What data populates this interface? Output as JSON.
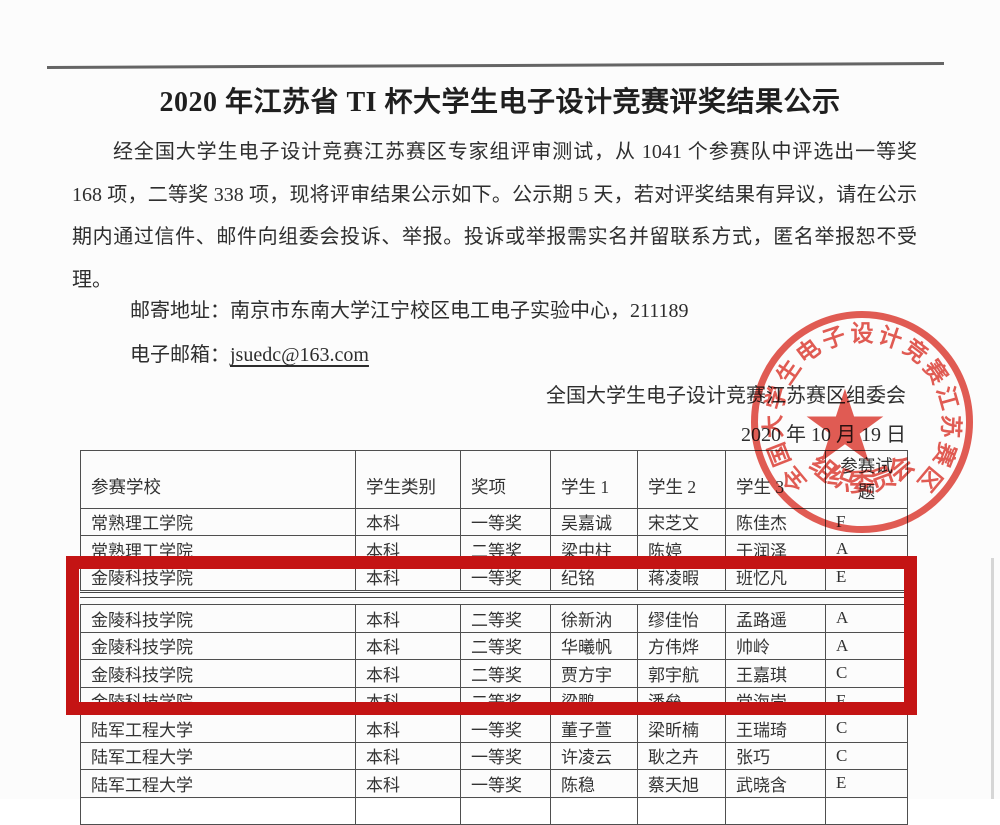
{
  "document": {
    "title": "2020 年江苏省 TI 杯大学生电子设计竞赛评奖结果公示",
    "body": "经全国大学生电子设计竞赛江苏赛区专家组评审测试，从 1041 个参赛队中评选出一等奖 168 项，二等奖 338 项，现将评审结果公示如下。公示期 5 天，若对评奖结果有异议，请在公示期内通过信件、邮件向组委会投诉、举报。投诉或举报需实名并留联系方式，匿名举报恕不受理。",
    "mail_label": "邮寄地址：",
    "mail_value": "南京市东南大学江宁校区电工电子实验中心，211189",
    "email_label": "电子邮箱：",
    "email_value": "jsuedc@163.com",
    "signature": "全国大学生电子设计竞赛江苏赛区组委会",
    "date": "2020 年 10 月 19 日"
  },
  "stamp": {
    "ring_text": "全国大学生电子设计竞赛江苏赛区",
    "bottom_text": "组织委员会",
    "star_icon": "★",
    "color": "#e0453c"
  },
  "annotation": {
    "highlight_color": "#c41414",
    "highlighted_school": "金陵科技学院"
  },
  "table": {
    "headers": [
      "参赛学校",
      "学生类别",
      "奖项",
      "学生 1",
      "学生 2",
      "学生 3",
      "参赛试题"
    ],
    "rows": [
      [
        "常熟理工学院",
        "本科",
        "一等奖",
        "吴嘉诚",
        "宋芝文",
        "陈佳杰",
        "F"
      ],
      [
        "常熟理工学院",
        "本科",
        "二等奖",
        "梁中柱",
        "陈婷",
        "于润泽",
        "A"
      ],
      [
        "金陵科技学院",
        "本科",
        "一等奖",
        "纪铭",
        "蒋凌暇",
        "班忆凡",
        "E"
      ],
      [
        "金陵科技学院",
        "本科",
        "二等奖",
        "徐新汭",
        "缪佳怡",
        "孟路遥",
        "A"
      ],
      [
        "金陵科技学院",
        "本科",
        "二等奖",
        "华曦帆",
        "方伟烨",
        "帅岭",
        "A"
      ],
      [
        "金陵科技学院",
        "本科",
        "二等奖",
        "贾方宇",
        "郭宇航",
        "王嘉琪",
        "C"
      ],
      [
        "金陵科技学院",
        "本科",
        "二等奖",
        "梁鹏",
        "潘垒",
        "党海崇",
        "F"
      ],
      [
        "陆军工程大学",
        "本科",
        "一等奖",
        "董子萱",
        "梁昕楠",
        "王瑞琦",
        "C"
      ],
      [
        "陆军工程大学",
        "本科",
        "一等奖",
        "许凌云",
        "耿之卉",
        "张巧",
        "C"
      ],
      [
        "陆军工程大学",
        "本科",
        "一等奖",
        "陈稳",
        "蔡天旭",
        "武晓含",
        "E"
      ]
    ]
  }
}
